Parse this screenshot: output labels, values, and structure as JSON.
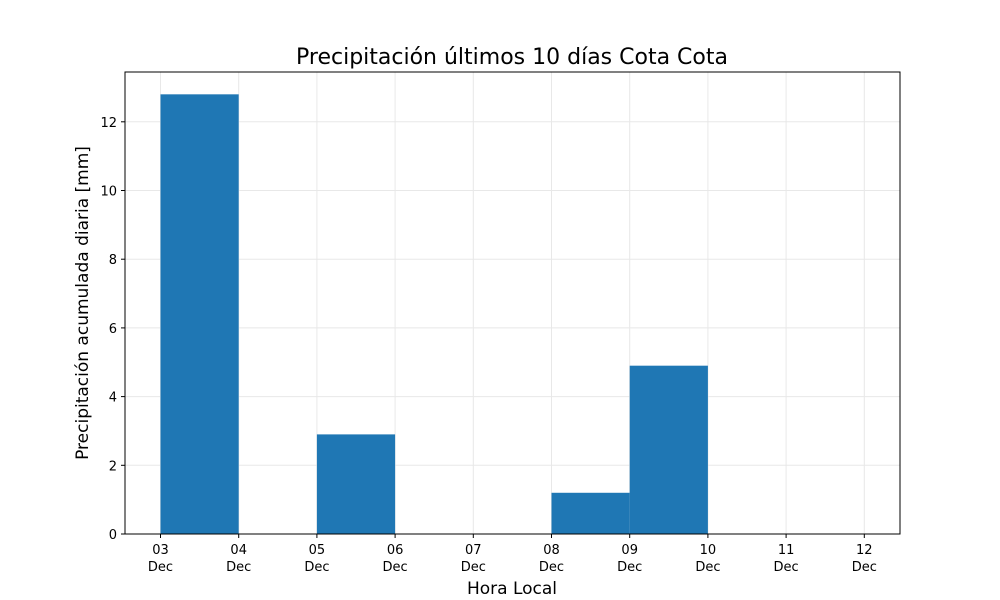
{
  "chart_data": {
    "type": "bar",
    "title": "Precipitación últimos 10 días Cota Cota",
    "xlabel": "Hora Local",
    "ylabel": "Precipitación acumulada diaria [mm]",
    "x_ticks": [
      {
        "day": "03",
        "month": "Dec"
      },
      {
        "day": "04",
        "month": "Dec"
      },
      {
        "day": "05",
        "month": "Dec"
      },
      {
        "day": "06",
        "month": "Dec"
      },
      {
        "day": "07",
        "month": "Dec"
      },
      {
        "day": "08",
        "month": "Dec"
      },
      {
        "day": "09",
        "month": "Dec"
      },
      {
        "day": "10",
        "month": "Dec"
      },
      {
        "day": "11",
        "month": "Dec"
      },
      {
        "day": "12",
        "month": "Dec"
      }
    ],
    "categories": [
      "03 Dec",
      "04 Dec",
      "05 Dec",
      "06 Dec",
      "07 Dec",
      "08 Dec",
      "09 Dec",
      "10 Dec",
      "11 Dec",
      "12 Dec"
    ],
    "values": [
      12.8,
      0,
      2.9,
      0,
      0,
      1.2,
      4.9,
      0,
      0,
      0
    ],
    "bar_align": "left-edge-at-date, one-day-wide",
    "xlim": [
      "02 Dec 14:00",
      "12 Dec 10:00"
    ],
    "ylim": [
      0,
      13.45
    ],
    "yticks": [
      0,
      2,
      4,
      6,
      8,
      10,
      12
    ],
    "grid": true,
    "bar_color": "#1f77b4"
  }
}
